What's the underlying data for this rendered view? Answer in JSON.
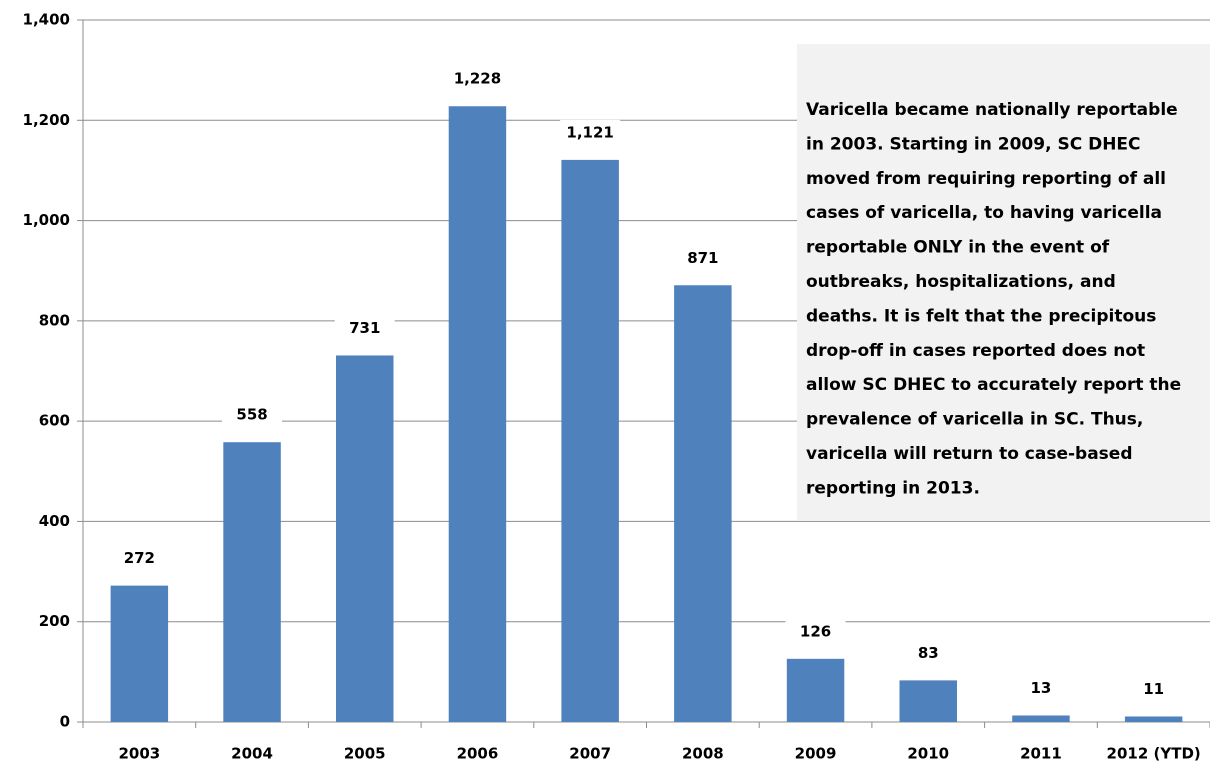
{
  "chart_data": {
    "type": "bar",
    "categories": [
      "2003",
      "2004",
      "2005",
      "2006",
      "2007",
      "2008",
      "2009",
      "2010",
      "2011",
      "2012 (YTD)"
    ],
    "values": [
      272,
      558,
      731,
      1228,
      1121,
      871,
      126,
      83,
      13,
      11
    ],
    "value_labels": [
      "272",
      "558",
      "731",
      "1,228",
      "1,121",
      "871",
      "126",
      "83",
      "13",
      "11"
    ],
    "color": "#4f81bd",
    "ylim": [
      0,
      1400
    ],
    "yticks": [
      0,
      200,
      400,
      600,
      800,
      {
        "value": 1000,
        "label": "1,000"
      },
      {
        "value": 1200,
        "label": "1,200"
      },
      {
        "value": 1400,
        "label": "1,400"
      }
    ],
    "grid": true,
    "annotation": [
      "Varicella became nationally reportable",
      "in 2003.  Starting in 2009, SC DHEC",
      "moved from requiring reporting of all",
      "cases of varicella, to having varicella",
      "reportable ONLY in the event of",
      "outbreaks, hospitalizations, and",
      "deaths.  It is felt that the precipitous",
      "drop-off in cases reported does not",
      "allow SC DHEC to accurately report the",
      "prevalence of varicella in SC.  Thus,",
      "varicella will return to case-based",
      "reporting in 2013."
    ]
  }
}
